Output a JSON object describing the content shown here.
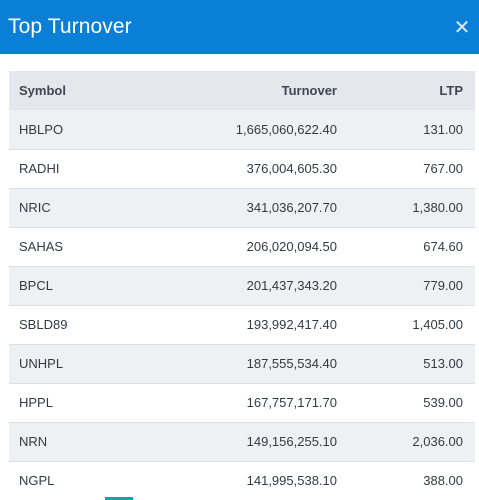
{
  "header": {
    "title": "Top Turnover",
    "close_icon": "close-icon"
  },
  "table": {
    "columns": [
      "Symbol",
      "Turnover",
      "LTP"
    ],
    "rows": [
      {
        "symbol": "HBLPO",
        "turnover": "1,665,060,622.40",
        "ltp": "131.00"
      },
      {
        "symbol": "RADHI",
        "turnover": "376,004,605.30",
        "ltp": "767.00"
      },
      {
        "symbol": "NRIC",
        "turnover": "341,036,207.70",
        "ltp": "1,380.00"
      },
      {
        "symbol": "SAHAS",
        "turnover": "206,020,094.50",
        "ltp": "674.60"
      },
      {
        "symbol": "BPCL",
        "turnover": "201,437,343.20",
        "ltp": "779.00"
      },
      {
        "symbol": "SBLD89",
        "turnover": "193,992,417.40",
        "ltp": "1,405.00"
      },
      {
        "symbol": "UNHPL",
        "turnover": "187,555,534.40",
        "ltp": "513.00"
      },
      {
        "symbol": "HPPL",
        "turnover": "167,757,171.70",
        "ltp": "539.00"
      },
      {
        "symbol": "NRN",
        "turnover": "149,156,255.10",
        "ltp": "2,036.00"
      },
      {
        "symbol": "NGPL",
        "turnover": "141,995,538.10",
        "ltp": "388.00"
      }
    ]
  },
  "colors": {
    "header_bg": "#0a7fd8",
    "header_text": "#ffffff",
    "table_header_bg": "#e4e7ec",
    "row_alt_bg": "#eef0f3"
  }
}
